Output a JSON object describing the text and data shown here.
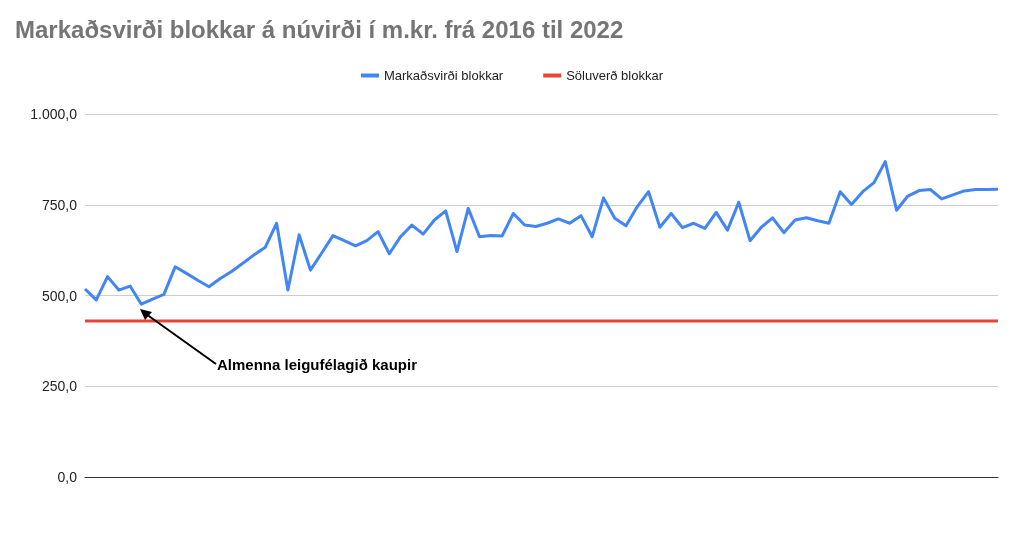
{
  "chart_data": {
    "type": "line",
    "title": "Markaðsvirði blokkar á núvirði í m.kr. frá 2016 til 2022",
    "categories": [
      null,
      null,
      null,
      null,
      null,
      null,
      null,
      null,
      null,
      null,
      null,
      null,
      null,
      null,
      null,
      null,
      null,
      null,
      null,
      null,
      null,
      null,
      null,
      null,
      null,
      null,
      null,
      null,
      null,
      null,
      null,
      null,
      null,
      null,
      null,
      null,
      null,
      null,
      null,
      null,
      null,
      null,
      null,
      null,
      null,
      null,
      null,
      null,
      null,
      null,
      null,
      null,
      null,
      null,
      null,
      null,
      null,
      null,
      null,
      null,
      null,
      null,
      null,
      null,
      null,
      null,
      null,
      null,
      null,
      null,
      null,
      null,
      null,
      null,
      null,
      null,
      null,
      null,
      null,
      null,
      null,
      null
    ],
    "series": [
      {
        "name": "Markaðsvirði blokkar",
        "color": "#4285f4",
        "values": [
          518,
          488,
          552,
          515,
          526,
          476,
          490,
          503,
          579,
          561,
          542,
          524,
          547,
          566,
          589,
          612,
          633,
          699,
          515,
          667,
          570,
          617,
          665,
          651,
          637,
          651,
          676,
          615,
          662,
          694,
          669,
          708,
          733,
          621,
          740,
          662,
          665,
          664,
          726,
          694,
          690,
          699,
          711,
          699,
          720,
          662,
          769,
          713,
          692,
          745,
          786,
          688,
          726,
          687,
          699,
          685,
          729,
          680,
          757,
          651,
          688,
          714,
          673,
          708,
          714,
          706,
          699,
          786,
          751,
          786,
          811,
          869,
          735,
          774,
          789,
          792,
          766,
          777,
          788,
          792,
          792,
          793
        ]
      },
      {
        "name": "Söluverð blokkar",
        "color": "#ea4335",
        "values": [
          430,
          430,
          430,
          430,
          430,
          430,
          430,
          430,
          430,
          430,
          430,
          430,
          430,
          430,
          430,
          430,
          430,
          430,
          430,
          430,
          430,
          430,
          430,
          430,
          430,
          430,
          430,
          430,
          430,
          430,
          430,
          430,
          430,
          430,
          430,
          430,
          430,
          430,
          430,
          430,
          430,
          430,
          430,
          430,
          430,
          430,
          430,
          430,
          430,
          430,
          430,
          430,
          430,
          430,
          430,
          430,
          430,
          430,
          430,
          430,
          430,
          430,
          430,
          430,
          430,
          430,
          430,
          430,
          430,
          430,
          430,
          430,
          430,
          430,
          430,
          430,
          430,
          430,
          430,
          430,
          430,
          430
        ]
      }
    ],
    "ylim": [
      0,
      1000
    ],
    "yticks": [
      {
        "value": 0,
        "label": "0,0"
      },
      {
        "value": 250,
        "label": "250,0"
      },
      {
        "value": 500,
        "label": "500,0"
      },
      {
        "value": 750,
        "label": "750,0"
      },
      {
        "value": 1000,
        "label": "1.000,0"
      }
    ],
    "grid": "y",
    "legend": "top",
    "marker": "none",
    "line_style": "solid",
    "annotations": [
      "Almenna leigufélagið kaupir"
    ]
  }
}
